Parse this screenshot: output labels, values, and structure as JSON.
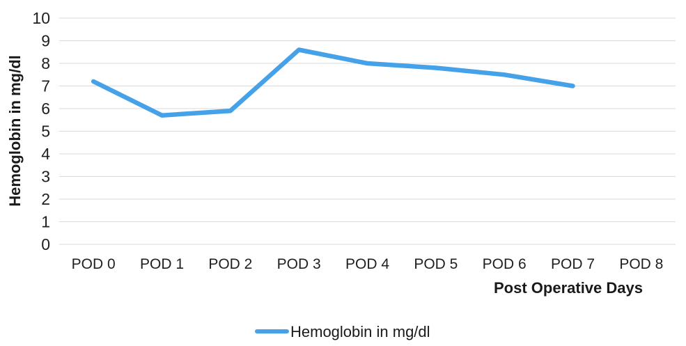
{
  "chart_data": {
    "type": "line",
    "categories": [
      "POD 0",
      "POD 1",
      "POD 2",
      "POD 3",
      "POD 4",
      "POD 5",
      "POD 6",
      "POD 7",
      "POD 8"
    ],
    "series": [
      {
        "name": "Hemoglobin in mg/dl",
        "values": [
          7.2,
          5.7,
          5.9,
          8.6,
          8.0,
          7.8,
          7.5,
          7.0,
          null
        ],
        "color": "#45a2e8"
      }
    ],
    "title": "",
    "xlabel": "Post Operative Days",
    "ylabel": "Hemoglobin in mg/dl",
    "ylim": [
      0,
      10
    ],
    "ytick_step": 1,
    "y_tick_labels": [
      "0",
      "1",
      "2",
      "3",
      "4",
      "5",
      "6",
      "7",
      "8",
      "9",
      "10"
    ],
    "grid": "horizontal",
    "grid_color": "#d9d9d9",
    "text_color": "#1f1f1f",
    "background_color": "#ffffff",
    "legend_position": "bottom"
  }
}
